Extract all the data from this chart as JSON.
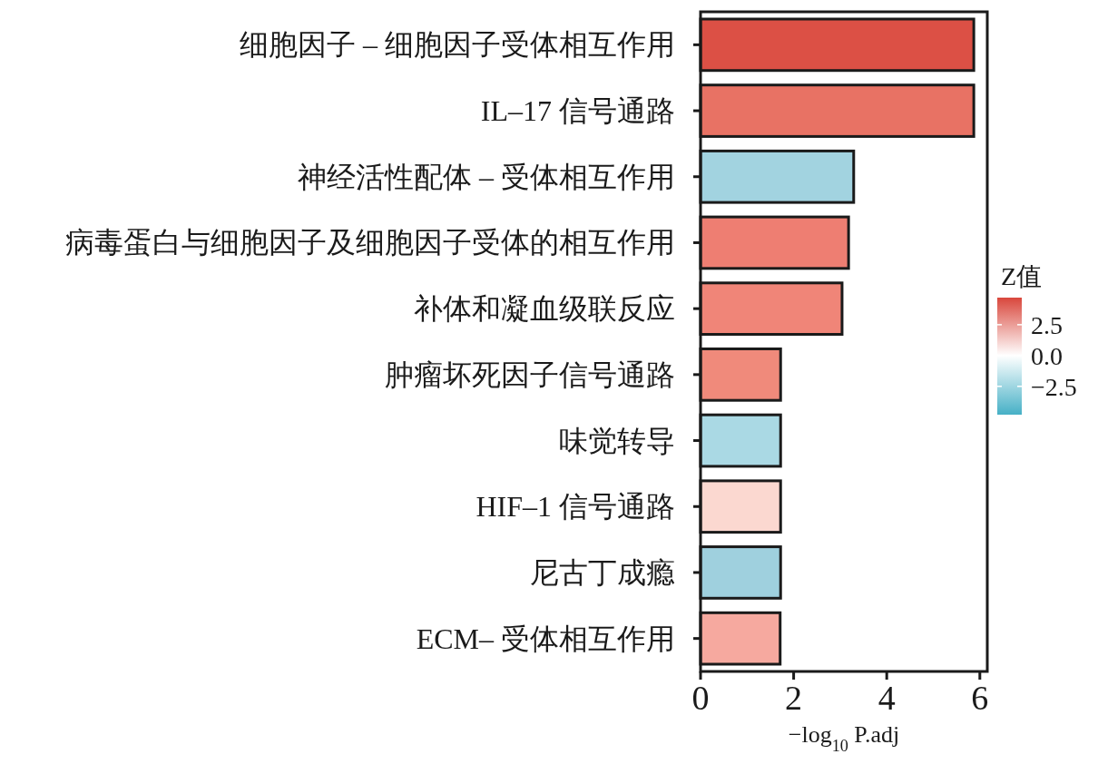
{
  "chart_data": {
    "type": "bar",
    "orientation": "horizontal",
    "categories": [
      "细胞因子 – 细胞因子受体相互作用",
      "IL–17 信号通路",
      "神经活性配体 – 受体相互作用",
      "病毒蛋白与细胞因子及细胞因子受体的相互作用",
      "补体和凝血级联反应",
      "肿瘤坏死因子信号通路",
      "味觉转导",
      "HIF–1 信号通路",
      "尼古丁成瘾",
      "ECM– 受体相互作用"
    ],
    "values": [
      5.87,
      5.87,
      3.29,
      3.18,
      3.04,
      1.72,
      1.72,
      1.72,
      1.72,
      1.71
    ],
    "colors": [
      "#dc5045",
      "#e87264",
      "#a2d3e0",
      "#ee7e72",
      "#f08578",
      "#f08a7b",
      "#aad9e4",
      "#fbd8d0",
      "#9fd0de",
      "#f6a99f"
    ],
    "xlim": [
      0,
      6.16
    ],
    "xticks": [
      0,
      2,
      4,
      6
    ],
    "xlabel": "−log$_{10}$ P.adj",
    "clabel": "Z值",
    "clim": [
      -4.8,
      4.7
    ],
    "cticks": [
      2.5,
      {
        "value": 0,
        "label": "0.0"
      },
      {
        "value": -2.5,
        "label": "−2.5"
      }
    ]
  }
}
